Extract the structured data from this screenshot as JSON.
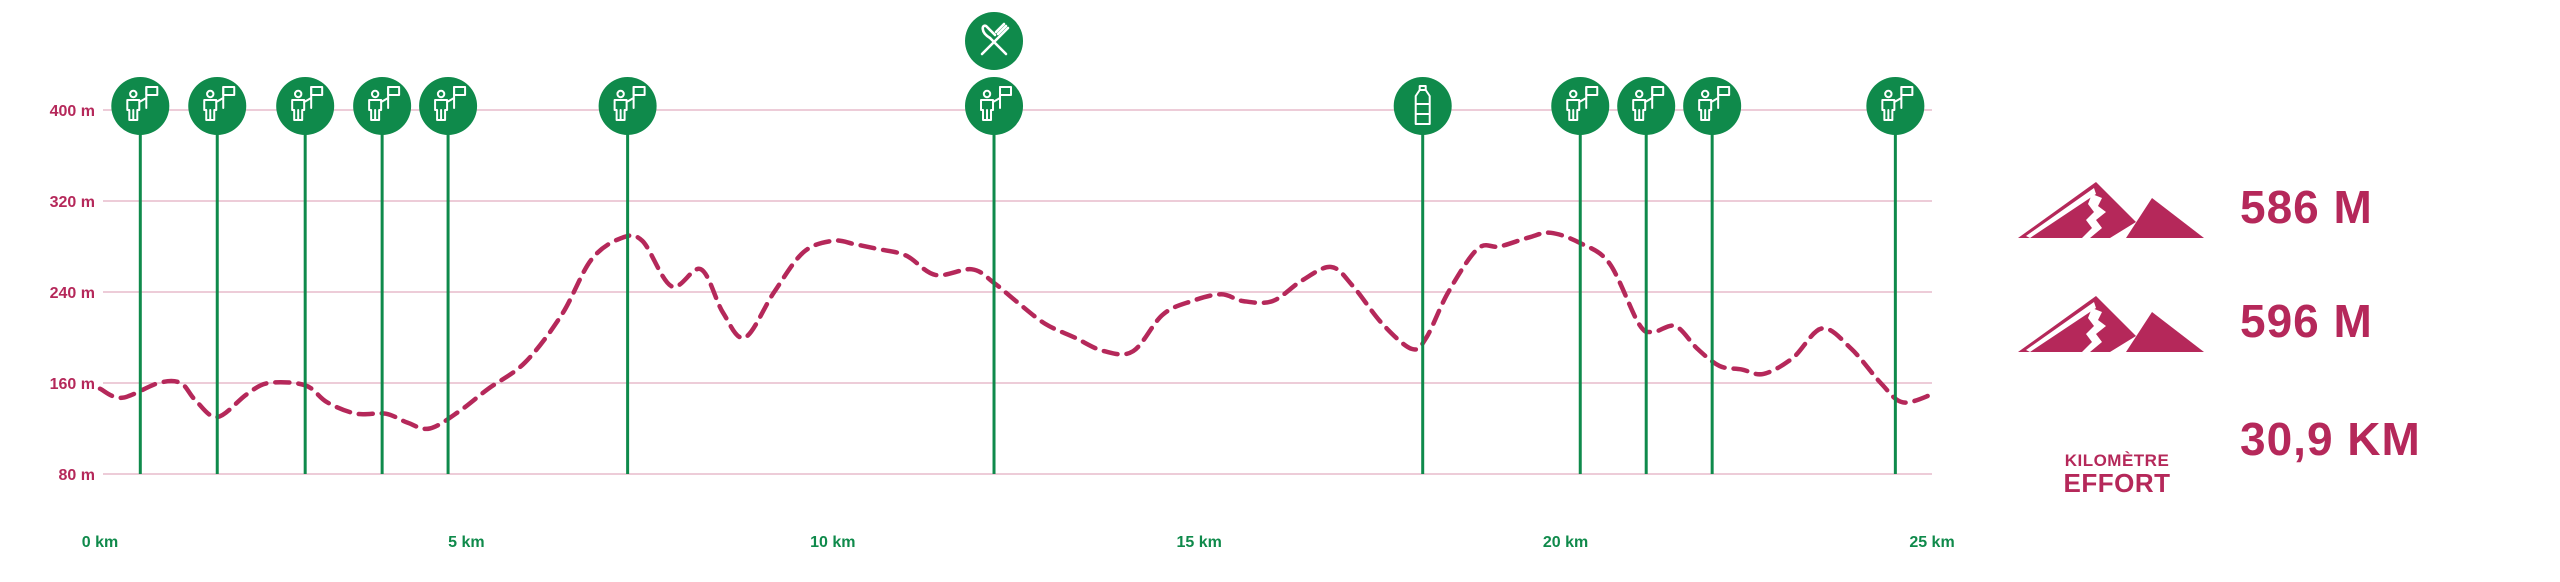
{
  "chart_data": {
    "type": "line",
    "xlim": [
      0,
      25
    ],
    "ylim": [
      80,
      400
    ],
    "y_ticks": [
      {
        "value": 80,
        "label": "80 m"
      },
      {
        "value": 160,
        "label": "160 m"
      },
      {
        "value": 240,
        "label": "240 m"
      },
      {
        "value": 320,
        "label": "320 m"
      },
      {
        "value": 400,
        "label": "400 m"
      }
    ],
    "x_ticks": [
      {
        "value": 0,
        "label": "0 km"
      },
      {
        "value": 5,
        "label": "5 km"
      },
      {
        "value": 10,
        "label": "10 km"
      },
      {
        "value": 15,
        "label": "15 km"
      },
      {
        "value": 20,
        "label": "20 km"
      },
      {
        "value": 25,
        "label": "25 km"
      }
    ],
    "grid": true,
    "line_style": "dashed",
    "series": [
      {
        "x": [
          0,
          0.3,
          0.8,
          1.1,
          1.3,
          1.6,
          2.0,
          2.3,
          2.8,
          3.1,
          3.5,
          3.9,
          4.2,
          4.5,
          4.9,
          5.3,
          5.8,
          6.3,
          6.7,
          7.1,
          7.4,
          7.8,
          8.2,
          8.5,
          8.8,
          9.2,
          9.6,
          10.0,
          10.3,
          10.6,
          11.0,
          11.4,
          11.9,
          12.2,
          12.5,
          12.9,
          13.3,
          13.7,
          14.1,
          14.5,
          14.9,
          15.3,
          15.6,
          16.0,
          16.4,
          16.8,
          17.1,
          17.5,
          17.9,
          18.1,
          18.4,
          18.8,
          19.1,
          19.5,
          19.8,
          20.2,
          20.6,
          21.0,
          21.2,
          21.5,
          21.8,
          22.1,
          22.4,
          22.7,
          23.1,
          23.5,
          23.9,
          24.3,
          24.6,
          25.0
        ],
        "y": [
          155,
          147,
          160,
          160,
          145,
          130,
          150,
          160,
          158,
          143,
          133,
          133,
          125,
          120,
          135,
          155,
          178,
          220,
          268,
          287,
          285,
          245,
          260,
          222,
          200,
          240,
          275,
          285,
          282,
          278,
          272,
          255,
          260,
          248,
          232,
          212,
          200,
          188,
          188,
          220,
          232,
          238,
          232,
          232,
          250,
          262,
          245,
          212,
          190,
          200,
          240,
          278,
          280,
          288,
          292,
          283,
          265,
          212,
          205,
          210,
          190,
          175,
          172,
          168,
          182,
          208,
          190,
          160,
          143,
          150
        ]
      }
    ],
    "markers": [
      {
        "x": 0.55,
        "icon": "volunteer-flag-icon"
      },
      {
        "x": 1.6,
        "icon": "volunteer-flag-icon"
      },
      {
        "x": 2.8,
        "icon": "volunteer-flag-icon"
      },
      {
        "x": 3.85,
        "icon": "volunteer-flag-icon"
      },
      {
        "x": 4.75,
        "icon": "volunteer-flag-icon"
      },
      {
        "x": 7.2,
        "icon": "volunteer-flag-icon"
      },
      {
        "x": 12.2,
        "icon": "volunteer-flag-icon",
        "extra_icon": "fork-knife-icon"
      },
      {
        "x": 18.05,
        "icon": "water-bottle-icon"
      },
      {
        "x": 20.2,
        "icon": "volunteer-flag-icon"
      },
      {
        "x": 21.1,
        "icon": "volunteer-flag-icon"
      },
      {
        "x": 22.0,
        "icon": "volunteer-flag-icon"
      },
      {
        "x": 24.5,
        "icon": "volunteer-flag-icon"
      }
    ],
    "colors": {
      "profile": "#b5285a",
      "grid": "#e7bccb",
      "marker": "#0f8a4b",
      "marker_icon": "#ffffff"
    }
  },
  "stats": {
    "ascent": {
      "value": "586 M",
      "icon": "ascent-mountain-icon"
    },
    "descent": {
      "value": "596 M",
      "icon": "descent-mountain-icon"
    },
    "effort": {
      "value": "30,9 KM",
      "label_top": "KILOMÈTRE",
      "label_bottom": "EFFORT"
    }
  }
}
